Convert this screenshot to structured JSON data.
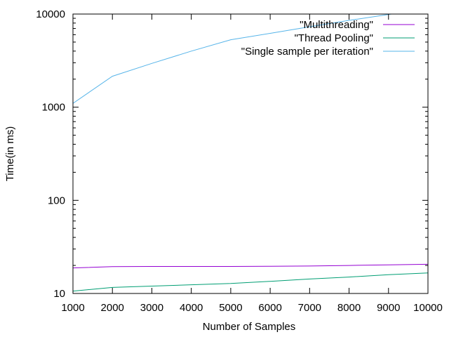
{
  "chart_data": {
    "type": "line",
    "xlabel": "Number of Samples",
    "ylabel": "Time(in ms)",
    "xlim": [
      1000,
      10000
    ],
    "ylim": [
      10,
      10000
    ],
    "yscale": "log",
    "grid": false,
    "legend_position": "top-right",
    "x_ticks": [
      1000,
      2000,
      3000,
      4000,
      5000,
      6000,
      7000,
      8000,
      9000,
      10000
    ],
    "x_tick_labels": [
      "1000",
      "2000",
      "3000",
      "4000",
      "5000",
      "6000",
      "7000",
      "8000",
      "9000",
      "10000"
    ],
    "y_ticks": [
      10,
      100,
      1000,
      10000
    ],
    "y_tick_labels": [
      "10",
      "100",
      "1000",
      "10000"
    ],
    "series": [
      {
        "name": "\"Multithreading\"",
        "color": "#9400d3",
        "x": [
          1000,
          2000,
          3000,
          4000,
          5000,
          6000,
          7000,
          8000,
          9000,
          10000
        ],
        "values": [
          18.8,
          19.4,
          19.5,
          19.5,
          19.5,
          19.6,
          19.7,
          20.0,
          20.3,
          20.6
        ]
      },
      {
        "name": "\"Thread Pooling\"",
        "color": "#009e73",
        "x": [
          1000,
          2000,
          3000,
          4000,
          5000,
          6000,
          7000,
          8000,
          9000,
          10000
        ],
        "values": [
          10.6,
          11.6,
          12.0,
          12.4,
          12.8,
          13.5,
          14.3,
          15.0,
          15.9,
          16.6
        ]
      },
      {
        "name": "\"Single sample per iteration\"",
        "color": "#56b4e9",
        "x": [
          1000,
          2000,
          3000,
          4000,
          5000,
          6000,
          7000,
          8000,
          9000,
          10000
        ],
        "values": [
          1100,
          2150,
          2950,
          4000,
          5300,
          6200,
          7300,
          8550,
          9900,
          11400
        ]
      }
    ]
  }
}
